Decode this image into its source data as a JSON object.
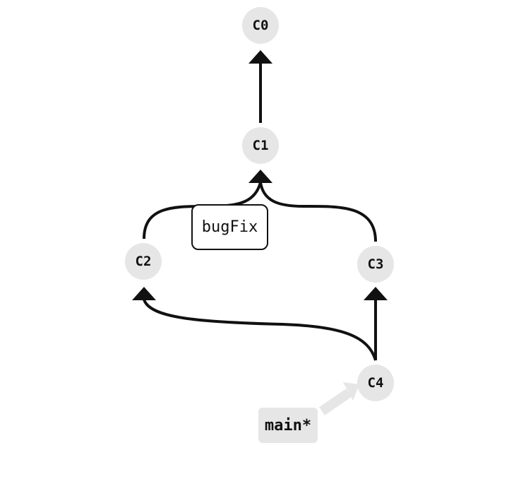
{
  "commits": [
    {
      "id": "c0",
      "label": "C0"
    },
    {
      "id": "c1",
      "label": "C1"
    },
    {
      "id": "c2",
      "label": "C2"
    },
    {
      "id": "c3",
      "label": "C3"
    },
    {
      "id": "c4",
      "label": "C4"
    }
  ],
  "edges": [
    {
      "from": "C1",
      "to": "C0"
    },
    {
      "from": "C2",
      "to": "C1"
    },
    {
      "from": "C3",
      "to": "C1"
    },
    {
      "from": "C4",
      "to": "C2"
    },
    {
      "from": "C4",
      "to": "C3"
    }
  ],
  "branches": {
    "bugfix": {
      "label": "bugFix",
      "points_to": "C1"
    },
    "main": {
      "label": "main*",
      "points_to": "C4",
      "checked_out": true
    }
  },
  "colors": {
    "node_fill": "#e6e6e6",
    "edge": "#111111",
    "head_arrow": "#e6e6e6",
    "background": "#ffffff"
  }
}
